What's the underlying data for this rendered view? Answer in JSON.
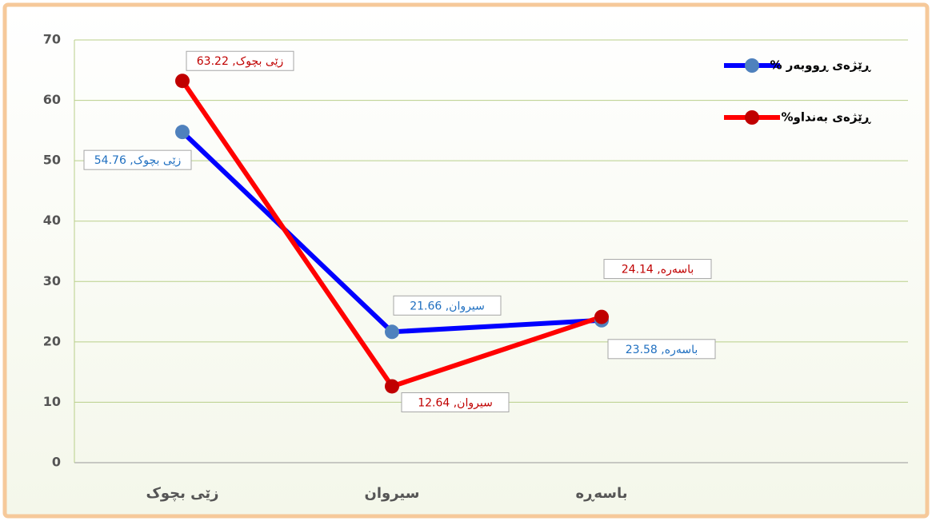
{
  "chart_data": {
    "type": "line",
    "categories": [
      "زێی بچوک",
      "سیروان",
      "باسەڕە"
    ],
    "series": [
      {
        "name": "ڕێژەی ڕووبەر %",
        "color": "#0000ff",
        "marker_color": "#4f81bd",
        "values": [
          54.76,
          21.66,
          23.58
        ],
        "value_labels": [
          "زێی بچوک, 54.76",
          "سیروان, 21.66",
          "باسەرە, 23.58"
        ]
      },
      {
        "name": "ڕێژەی بەنداو%",
        "color": "#ff0000",
        "marker_color": "#c00000",
        "values": [
          63.22,
          12.64,
          24.14
        ],
        "value_labels": [
          "زێی بچوک, 63.22",
          "سیروان, 12.64",
          "باسەرە, 24.14"
        ]
      }
    ],
    "ylim": [
      0,
      70
    ],
    "yticks": [
      0,
      10,
      20,
      30,
      40,
      50,
      60,
      70
    ],
    "grid": true,
    "legend": "top-right"
  }
}
